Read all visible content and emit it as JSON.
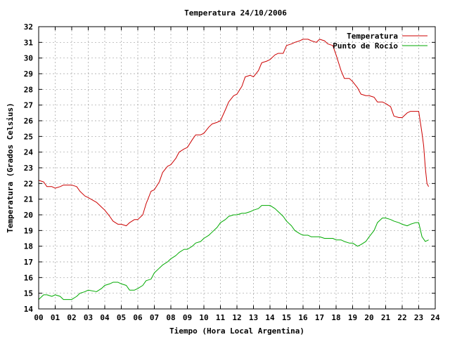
{
  "chart_data": {
    "type": "line",
    "title": "Temperatura 24/10/2006",
    "xlabel": "Tiempo (Hora Local Argentina)",
    "ylabel": "Temperatura (Grados Celsius)",
    "xlim": [
      0,
      24
    ],
    "ylim": [
      14,
      32
    ],
    "x_ticks": [
      "00",
      "01",
      "02",
      "03",
      "04",
      "05",
      "06",
      "07",
      "08",
      "09",
      "10",
      "11",
      "12",
      "13",
      "14",
      "15",
      "16",
      "17",
      "18",
      "19",
      "20",
      "21",
      "22",
      "23",
      "24"
    ],
    "y_ticks": [
      "14",
      "15",
      "16",
      "17",
      "18",
      "19",
      "20",
      "21",
      "22",
      "23",
      "24",
      "25",
      "26",
      "27",
      "28",
      "29",
      "30",
      "31",
      "32"
    ],
    "grid": true,
    "legend_position": "top-right",
    "series": [
      {
        "name": "Temperatura",
        "color": "#cc0000",
        "x": [
          0.0,
          0.3,
          0.5,
          0.8,
          1.0,
          1.3,
          1.5,
          2.0,
          2.3,
          2.5,
          2.8,
          3.0,
          3.5,
          3.8,
          4.0,
          4.3,
          4.5,
          4.8,
          5.0,
          5.3,
          5.5,
          5.8,
          6.0,
          6.3,
          6.5,
          6.8,
          7.0,
          7.3,
          7.5,
          7.8,
          8.0,
          8.3,
          8.5,
          8.8,
          9.0,
          9.3,
          9.5,
          9.8,
          10.0,
          10.3,
          10.5,
          10.8,
          11.0,
          11.3,
          11.5,
          11.8,
          12.0,
          12.3,
          12.5,
          12.8,
          13.0,
          13.3,
          13.5,
          13.8,
          14.0,
          14.3,
          14.5,
          14.8,
          15.0,
          15.3,
          15.5,
          15.8,
          16.0,
          16.3,
          16.5,
          16.8,
          17.0,
          17.3,
          17.5,
          17.8,
          18.0,
          18.3,
          18.5,
          18.8,
          19.0,
          19.3,
          19.5,
          19.8,
          20.0,
          20.3,
          20.5,
          20.8,
          21.0,
          21.3,
          21.5,
          21.8,
          22.0,
          22.3,
          22.5,
          22.8,
          23.0,
          23.2,
          23.3,
          23.4,
          23.5,
          23.6
        ],
        "values": [
          22.2,
          22.1,
          21.8,
          21.8,
          21.7,
          21.8,
          21.9,
          21.9,
          21.8,
          21.5,
          21.2,
          21.1,
          20.8,
          20.5,
          20.3,
          19.9,
          19.6,
          19.4,
          19.4,
          19.3,
          19.5,
          19.7,
          19.7,
          20.0,
          20.7,
          21.5,
          21.6,
          22.1,
          22.7,
          23.1,
          23.2,
          23.6,
          24.0,
          24.2,
          24.3,
          24.8,
          25.1,
          25.1,
          25.2,
          25.6,
          25.8,
          25.9,
          26.0,
          26.7,
          27.2,
          27.6,
          27.7,
          28.2,
          28.8,
          28.9,
          28.8,
          29.2,
          29.7,
          29.8,
          29.9,
          30.2,
          30.3,
          30.3,
          30.8,
          30.9,
          31.0,
          31.1,
          31.2,
          31.2,
          31.1,
          31.0,
          31.2,
          31.1,
          30.9,
          30.8,
          30.2,
          29.2,
          28.7,
          28.7,
          28.5,
          28.1,
          27.7,
          27.6,
          27.6,
          27.5,
          27.2,
          27.2,
          27.1,
          26.9,
          26.3,
          26.2,
          26.2,
          26.5,
          26.6,
          26.6,
          26.6,
          25.2,
          24.4,
          23.0,
          22.0,
          21.8
        ]
      },
      {
        "name": "Punto de Rocío",
        "color": "#00aa00",
        "x": [
          0.0,
          0.3,
          0.5,
          0.8,
          1.0,
          1.3,
          1.5,
          2.0,
          2.3,
          2.5,
          2.8,
          3.0,
          3.5,
          3.8,
          4.0,
          4.3,
          4.5,
          4.8,
          5.0,
          5.3,
          5.5,
          5.8,
          6.0,
          6.3,
          6.5,
          6.8,
          7.0,
          7.3,
          7.5,
          7.8,
          8.0,
          8.3,
          8.5,
          8.8,
          9.0,
          9.3,
          9.5,
          9.8,
          10.0,
          10.3,
          10.5,
          10.8,
          11.0,
          11.3,
          11.5,
          11.8,
          12.0,
          12.3,
          12.5,
          12.8,
          13.0,
          13.3,
          13.5,
          13.8,
          14.0,
          14.3,
          14.5,
          14.8,
          15.0,
          15.3,
          15.5,
          15.8,
          16.0,
          16.3,
          16.5,
          16.8,
          17.0,
          17.3,
          17.5,
          17.8,
          18.0,
          18.3,
          18.5,
          18.8,
          19.0,
          19.3,
          19.5,
          19.8,
          20.0,
          20.3,
          20.5,
          20.8,
          21.0,
          21.3,
          21.5,
          21.8,
          22.0,
          22.3,
          22.5,
          22.8,
          23.0,
          23.2,
          23.4,
          23.6
        ],
        "values": [
          14.6,
          14.9,
          14.9,
          14.8,
          14.9,
          14.8,
          14.6,
          14.6,
          14.8,
          15.0,
          15.1,
          15.2,
          15.1,
          15.3,
          15.5,
          15.6,
          15.7,
          15.7,
          15.6,
          15.5,
          15.2,
          15.2,
          15.3,
          15.5,
          15.8,
          15.9,
          16.3,
          16.6,
          16.8,
          17.0,
          17.2,
          17.4,
          17.6,
          17.8,
          17.8,
          18.0,
          18.2,
          18.3,
          18.5,
          18.7,
          18.9,
          19.2,
          19.5,
          19.7,
          19.9,
          20.0,
          20.0,
          20.1,
          20.1,
          20.2,
          20.3,
          20.4,
          20.6,
          20.6,
          20.6,
          20.4,
          20.2,
          19.9,
          19.6,
          19.3,
          19.0,
          18.8,
          18.7,
          18.7,
          18.6,
          18.6,
          18.6,
          18.5,
          18.5,
          18.5,
          18.4,
          18.4,
          18.3,
          18.2,
          18.2,
          18.0,
          18.1,
          18.3,
          18.6,
          19.0,
          19.5,
          19.8,
          19.8,
          19.7,
          19.6,
          19.5,
          19.4,
          19.3,
          19.4,
          19.5,
          19.5,
          18.6,
          18.3,
          18.4
        ]
      }
    ]
  }
}
